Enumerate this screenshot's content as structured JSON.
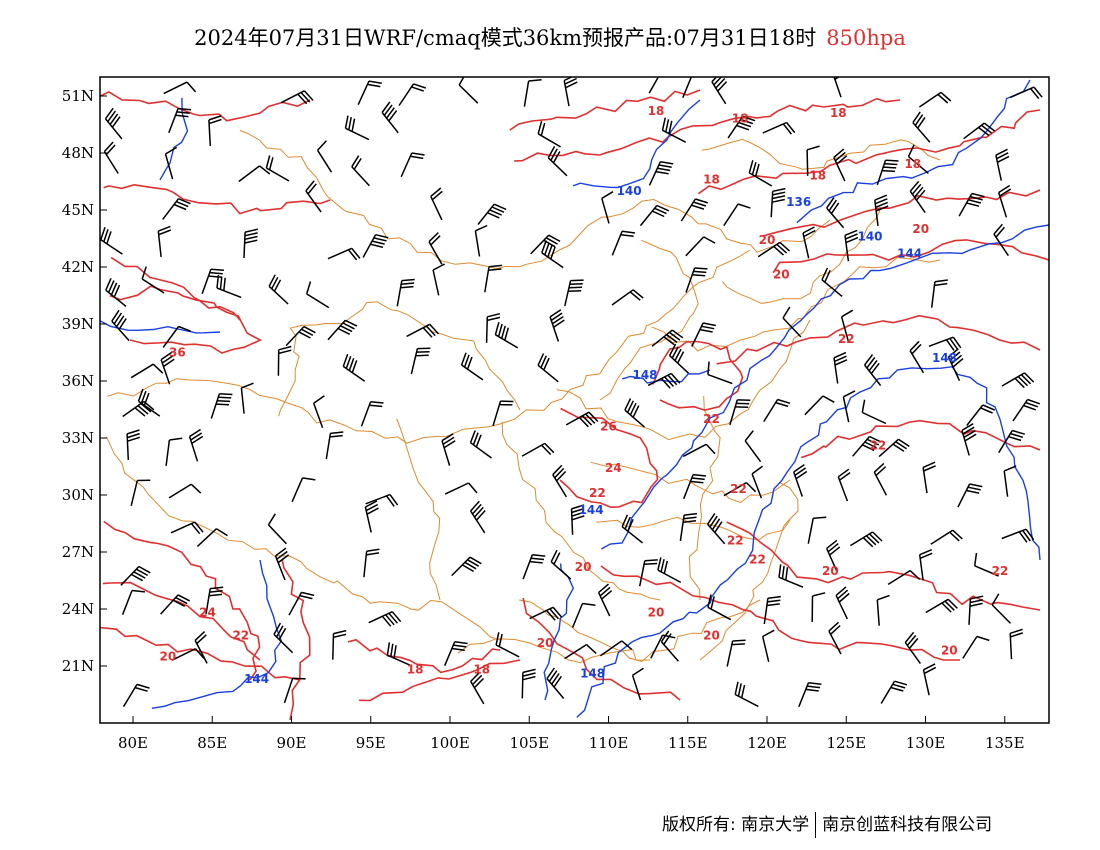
{
  "header": {
    "title": "2024年07月31日WRF/cmaq模式36km预报产品:07月31日18时",
    "level": "850hpa"
  },
  "map": {
    "lon_labels": [
      "80E",
      "85E",
      "90E",
      "95E",
      "100E",
      "105E",
      "110E",
      "115E",
      "120E",
      "125E",
      "130E",
      "135E"
    ],
    "lat_labels": [
      "51N",
      "48N",
      "45N",
      "42N",
      "39N",
      "36N",
      "33N",
      "30N",
      "27N",
      "24N",
      "21N"
    ],
    "colors": {
      "temperature": "#e03030",
      "height": "#1a40e0",
      "border": "#e08a30",
      "barb": "#000000"
    },
    "temperature_labels": [
      {
        "text": "18",
        "lon": 113.0,
        "lat": 50.0
      },
      {
        "text": "18",
        "lon": 118.3,
        "lat": 49.6
      },
      {
        "text": "18",
        "lon": 124.5,
        "lat": 49.9
      },
      {
        "text": "18",
        "lon": 116.5,
        "lat": 46.4
      },
      {
        "text": "18",
        "lon": 123.2,
        "lat": 46.6
      },
      {
        "text": "18",
        "lon": 129.2,
        "lat": 47.2
      },
      {
        "text": "20",
        "lon": 120.0,
        "lat": 43.2
      },
      {
        "text": "20",
        "lon": 129.7,
        "lat": 43.8
      },
      {
        "text": "20",
        "lon": 120.9,
        "lat": 41.4
      },
      {
        "text": "22",
        "lon": 125.0,
        "lat": 38.0
      },
      {
        "text": "22",
        "lon": 116.5,
        "lat": 33.8
      },
      {
        "text": "22",
        "lon": 118.2,
        "lat": 30.1
      },
      {
        "text": "22",
        "lon": 127.0,
        "lat": 32.4
      },
      {
        "text": "26",
        "lon": 110.0,
        "lat": 33.4
      },
      {
        "text": "24",
        "lon": 110.3,
        "lat": 31.2
      },
      {
        "text": "22",
        "lon": 109.3,
        "lat": 29.9
      },
      {
        "text": "22",
        "lon": 118.0,
        "lat": 27.4
      },
      {
        "text": "22",
        "lon": 119.4,
        "lat": 26.4
      },
      {
        "text": "20",
        "lon": 124.0,
        "lat": 25.8
      },
      {
        "text": "20",
        "lon": 113.0,
        "lat": 23.6
      },
      {
        "text": "20",
        "lon": 116.5,
        "lat": 22.4
      },
      {
        "text": "20",
        "lon": 131.5,
        "lat": 21.6
      },
      {
        "text": "22",
        "lon": 134.7,
        "lat": 25.8
      },
      {
        "text": "20",
        "lon": 108.4,
        "lat": 26.0
      },
      {
        "text": "20",
        "lon": 106.0,
        "lat": 22.0
      },
      {
        "text": "18",
        "lon": 97.8,
        "lat": 20.6
      },
      {
        "text": "18",
        "lon": 102.0,
        "lat": 20.6
      },
      {
        "text": "24",
        "lon": 84.7,
        "lat": 23.6
      },
      {
        "text": "22",
        "lon": 86.8,
        "lat": 22.4
      },
      {
        "text": "20",
        "lon": 82.2,
        "lat": 21.3
      },
      {
        "text": "36",
        "lon": 82.8,
        "lat": 37.3
      }
    ],
    "height_labels": [
      {
        "text": "140",
        "lon": 111.3,
        "lat": 45.8
      },
      {
        "text": "136",
        "lon": 122.0,
        "lat": 45.2
      },
      {
        "text": "140",
        "lon": 126.5,
        "lat": 43.4
      },
      {
        "text": "144",
        "lon": 129.0,
        "lat": 42.5
      },
      {
        "text": "148",
        "lon": 131.2,
        "lat": 37.0
      },
      {
        "text": "148",
        "lon": 112.3,
        "lat": 36.1
      },
      {
        "text": "144",
        "lon": 108.9,
        "lat": 29.0
      },
      {
        "text": "148",
        "lon": 109.0,
        "lat": 20.4
      },
      {
        "text": "144",
        "lon": 87.8,
        "lat": 20.1
      }
    ]
  },
  "footer": {
    "copyright": "版权所有: 南京大学",
    "company": "南京创蓝科技有限公司"
  }
}
